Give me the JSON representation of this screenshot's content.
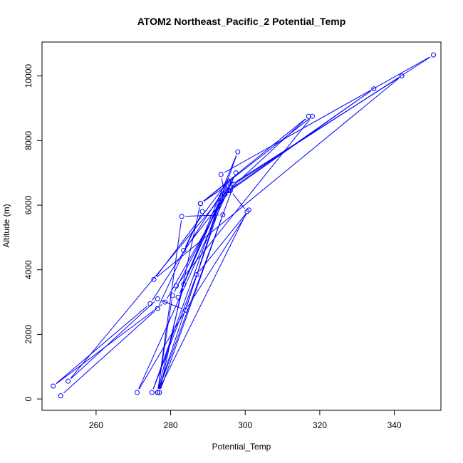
{
  "chart_data": {
    "type": "line",
    "title": "ATOM2 Northeast_Pacific_2 Potential_Temp",
    "xlabel": "Potential_Temp",
    "ylabel": "Altitude (m)",
    "xlim": [
      245.5,
      352.5
    ],
    "ylim": [
      -350,
      11050
    ],
    "xticks": [
      260,
      280,
      300,
      320,
      340
    ],
    "yticks": [
      0,
      2000,
      4000,
      6000,
      8000,
      10000
    ],
    "grid": false,
    "color": "#0000ff",
    "series": [
      {
        "x": [
          250.5,
          276.5,
          288.5,
          283.5,
          296.0,
          300.5,
          276.5,
          283.5,
          293.5,
          284.0,
          271.0,
          297.5,
          280.5,
          276.5,
          283.0,
          294.0,
          277.0,
          288.0,
          317.0,
          294.5,
          293.5,
          350.5,
          297.0,
          276.5,
          295.5,
          275.5,
          342.0,
          296.5,
          252.5,
          276.5,
          284.0,
          301.0,
          287.0,
          275.0,
          298.0,
          282.0,
          293.5,
          334.5,
          295.5,
          278.5,
          248.5,
          274.5,
          295.0,
          288.0,
          318.0,
          281.5
        ],
        "y": [
          100,
          2800,
          5800,
          4600,
          6450,
          5800,
          200,
          3550,
          6200,
          2750,
          200,
          7000,
          3200,
          200,
          5650,
          5700,
          200,
          6050,
          8750,
          6350,
          6950,
          10650,
          6650,
          200,
          6750,
          3700,
          10000,
          6650,
          550,
          3100,
          2750,
          5850,
          3850,
          200,
          7650,
          3150,
          6250,
          9600,
          6450,
          3000,
          400,
          2950,
          6600,
          6050,
          8750,
          3500
        ]
      }
    ]
  }
}
